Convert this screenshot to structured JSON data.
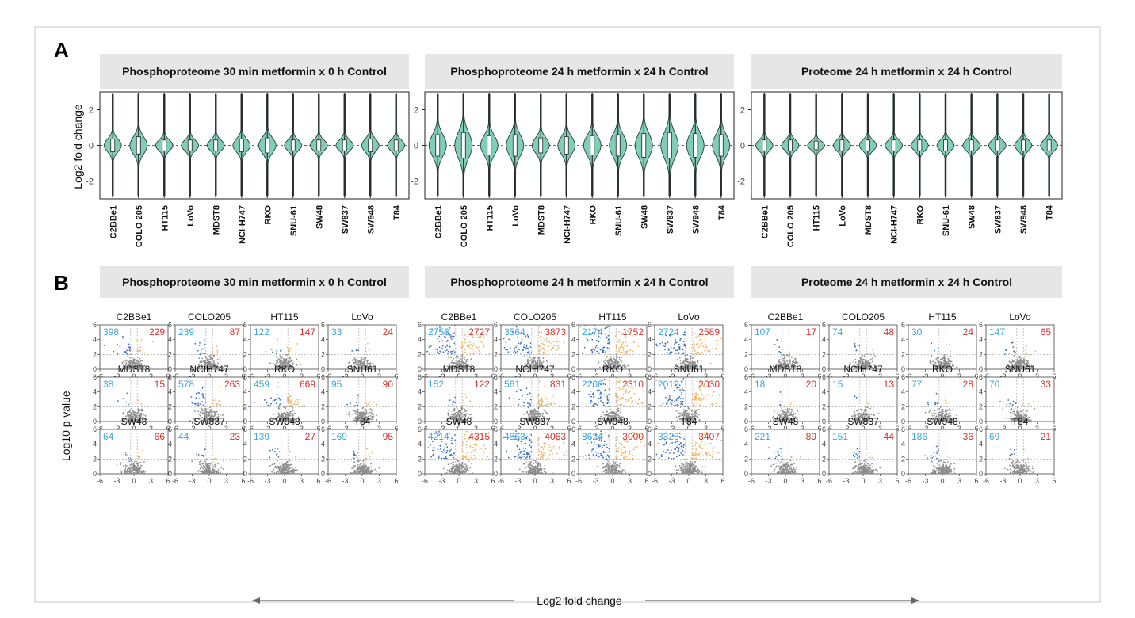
{
  "panel_labels": {
    "a": "A",
    "b": "B"
  },
  "headers": [
    "Phosphoproteome 30 min metformin x 0 h Control",
    "Phosphoproteome 24 h metformin x 24 h Control",
    "Proteome 24 h metformin x 24 h Control"
  ],
  "violin_ylabel": "Log2 fold change",
  "volcano_ylabel": "-Log10 p-value",
  "volcano_xlabel": "Log2 fold change",
  "colors": {
    "violin_fill": "#7fcfb8",
    "down_points": "#3b6fc0",
    "up_points": "#f3b35d",
    "ns_points": "#8c8c8c",
    "down_count_text": "#3aa6dd",
    "up_count_text": "#d9302c",
    "header_bg": "#e6e6e6"
  },
  "chart_data": [
    {
      "type": "violin",
      "title": "Phosphoproteome 30 min metformin x 0 h Control",
      "ylabel": "Log2 fold change",
      "ylim": [
        -3,
        3
      ],
      "yticks": [
        -2,
        0,
        2
      ],
      "categories": [
        "C2BBe1",
        "COLO 205",
        "HT115",
        "LoVo",
        "MDST8",
        "NCI-H747",
        "RKO",
        "SNU-61",
        "SW48",
        "SW837",
        "SW948",
        "T84"
      ],
      "spread": [
        0.6,
        0.8,
        0.5,
        0.5,
        0.5,
        0.6,
        0.7,
        0.5,
        0.5,
        0.5,
        0.6,
        0.5
      ],
      "reference_line": 0
    },
    {
      "type": "violin",
      "title": "Phosphoproteome 24 h metformin x 24 h Control",
      "ylabel": "",
      "ylim": [
        -3,
        3
      ],
      "yticks": [
        -2,
        0,
        2
      ],
      "categories": [
        "C2BBe1",
        "COLO 205",
        "HT115",
        "LoVo",
        "MDST8",
        "NCI-H747",
        "RKO",
        "SNU-61",
        "SW48",
        "SW837",
        "SW948",
        "T84"
      ],
      "spread": [
        1.0,
        1.2,
        0.9,
        1.0,
        0.7,
        0.8,
        0.9,
        1.0,
        1.1,
        1.2,
        1.1,
        1.0
      ],
      "reference_line": 0
    },
    {
      "type": "violin",
      "title": "Proteome 24 h metformin x 24 h Control",
      "ylabel": "",
      "ylim": [
        -3,
        3
      ],
      "yticks": [
        -2,
        0,
        2
      ],
      "categories": [
        "C2BBe1",
        "COLO 205",
        "HT115",
        "LoVo",
        "MDST8",
        "NCI-H747",
        "RKO",
        "SNU-61",
        "SW48",
        "SW837",
        "SW948",
        "T84"
      ],
      "spread": [
        0.5,
        0.5,
        0.4,
        0.5,
        0.5,
        0.5,
        0.5,
        0.5,
        0.5,
        0.5,
        0.5,
        0.5
      ],
      "reference_line": 0
    },
    {
      "type": "scatter",
      "title": "Phosphoproteome 30 min metformin x 0 h Control",
      "xlabel": "Log2 fold change",
      "ylabel": "-Log10 p-value",
      "xlim": [
        -6,
        6
      ],
      "ylim": [
        0,
        6
      ],
      "xticks": [
        -6,
        -3,
        0,
        3,
        6
      ],
      "yticks": [
        0,
        2,
        4,
        6
      ],
      "panels": [
        {
          "name": "C2BBe1",
          "down": 398,
          "up": 229
        },
        {
          "name": "COLO205",
          "down": 239,
          "up": 87
        },
        {
          "name": "HT115",
          "down": 122,
          "up": 147
        },
        {
          "name": "LoVo",
          "down": 33,
          "up": 24
        },
        {
          "name": "MDST8",
          "down": 38,
          "up": 15
        },
        {
          "name": "NCIH747",
          "down": 578,
          "up": 263
        },
        {
          "name": "RKO",
          "down": 459,
          "up": 669
        },
        {
          "name": "SNU61",
          "down": 95,
          "up": 90
        },
        {
          "name": "SW48",
          "down": 64,
          "up": 66
        },
        {
          "name": "SW837",
          "down": 44,
          "up": 23
        },
        {
          "name": "SW948",
          "down": 139,
          "up": 27
        },
        {
          "name": "T84",
          "down": 169,
          "up": 95
        }
      ]
    },
    {
      "type": "scatter",
      "title": "Phosphoproteome 24 h metformin x 24 h Control",
      "xlabel": "Log2 fold change",
      "ylabel": "-Log10 p-value",
      "xlim": [
        -6,
        6
      ],
      "ylim": [
        0,
        6
      ],
      "xticks": [
        -6,
        -3,
        0,
        3,
        6
      ],
      "yticks": [
        0,
        2,
        4,
        6
      ],
      "panels": [
        {
          "name": "C2BBe1",
          "down": 2756,
          "up": 2727
        },
        {
          "name": "COLO205",
          "down": 3564,
          "up": 3873
        },
        {
          "name": "HT115",
          "down": 2174,
          "up": 1752
        },
        {
          "name": "LoVo",
          "down": 2724,
          "up": 2589
        },
        {
          "name": "MDST8",
          "down": 152,
          "up": 122
        },
        {
          "name": "NCIH747",
          "down": 561,
          "up": 831
        },
        {
          "name": "RKO",
          "down": 2208,
          "up": 2310
        },
        {
          "name": "SNU61",
          "down": 2019,
          "up": 2030
        },
        {
          "name": "SW48",
          "down": 4214,
          "up": 4315
        },
        {
          "name": "SW837",
          "down": 4863,
          "up": 4063
        },
        {
          "name": "SW948",
          "down": 3624,
          "up": 3000
        },
        {
          "name": "T84",
          "down": 3326,
          "up": 3407
        }
      ]
    },
    {
      "type": "scatter",
      "title": "Proteome 24 h metformin x 24 h Control",
      "xlabel": "Log2 fold change",
      "ylabel": "-Log10 p-value",
      "xlim": [
        -6,
        6
      ],
      "ylim": [
        0,
        6
      ],
      "xticks": [
        -6,
        -3,
        0,
        3,
        6
      ],
      "yticks": [
        0,
        2,
        4,
        6
      ],
      "panels": [
        {
          "name": "C2BBe1",
          "down": 107,
          "up": 17
        },
        {
          "name": "COLO205",
          "down": 74,
          "up": 48
        },
        {
          "name": "HT115",
          "down": 30,
          "up": 24
        },
        {
          "name": "LoVo",
          "down": 147,
          "up": 65
        },
        {
          "name": "MDST8",
          "down": 18,
          "up": 20
        },
        {
          "name": "NCIH747",
          "down": 15,
          "up": 13
        },
        {
          "name": "RKO",
          "down": 77,
          "up": 28
        },
        {
          "name": "SNU61",
          "down": 70,
          "up": 33
        },
        {
          "name": "SW48",
          "down": 221,
          "up": 89
        },
        {
          "name": "SW837",
          "down": 151,
          "up": 44
        },
        {
          "name": "SW948",
          "down": 186,
          "up": 36
        },
        {
          "name": "T84",
          "down": 69,
          "up": 21
        }
      ]
    }
  ]
}
